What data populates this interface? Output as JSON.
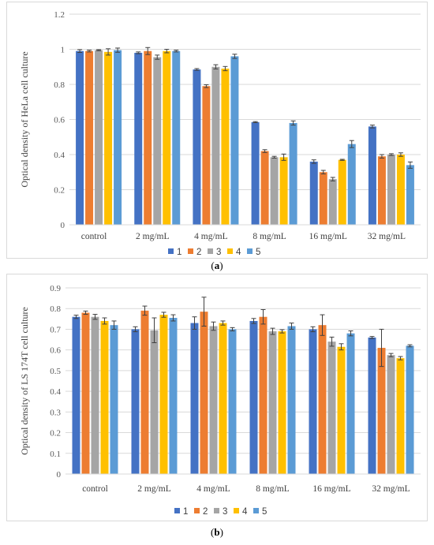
{
  "chart_data": [
    {
      "type": "bar",
      "caption_letter": "a",
      "ylabel": "Optical density of HeLa cell culture",
      "xlabel": "",
      "ylim": [
        0,
        1.2
      ],
      "yticks": [
        "0",
        "0.2",
        "0.4",
        "0.6",
        "0.8",
        "1",
        "1.2"
      ],
      "ytick_values": [
        0,
        0.2,
        0.4,
        0.6,
        0.8,
        1.0,
        1.2
      ],
      "categories": [
        "control",
        "2 mg/mL",
        "4 mg/mL",
        "8 mg/mL",
        "16 mg/mL",
        "32 mg/mL"
      ],
      "grid": true,
      "legend_position": "bottom",
      "series": [
        {
          "name": "1",
          "color": "#4472C4",
          "values": [
            0.99,
            0.98,
            0.885,
            0.585,
            0.36,
            0.56
          ],
          "errors": [
            0.008,
            0.005,
            0.005,
            0.003,
            0.01,
            0.008
          ]
        },
        {
          "name": "2",
          "color": "#ED7D31",
          "values": [
            0.99,
            0.99,
            0.79,
            0.42,
            0.3,
            0.39
          ],
          "errors": [
            0.005,
            0.02,
            0.008,
            0.008,
            0.01,
            0.01
          ]
        },
        {
          "name": "3",
          "color": "#A5A5A5",
          "values": [
            0.995,
            0.955,
            0.9,
            0.385,
            0.26,
            0.4
          ],
          "errors": [
            0.003,
            0.012,
            0.012,
            0.005,
            0.01,
            0.005
          ]
        },
        {
          "name": "4",
          "color": "#FFC000",
          "values": [
            0.985,
            0.99,
            0.89,
            0.385,
            0.37,
            0.4
          ],
          "errors": [
            0.018,
            0.01,
            0.012,
            0.018,
            0.003,
            0.01
          ]
        },
        {
          "name": "5",
          "color": "#5B9BD5",
          "values": [
            0.995,
            0.99,
            0.96,
            0.58,
            0.46,
            0.34
          ],
          "errors": [
            0.012,
            0.005,
            0.012,
            0.012,
            0.02,
            0.018
          ]
        }
      ]
    },
    {
      "type": "bar",
      "caption_letter": "b",
      "ylabel": "Optical density of LS 174T cell culture",
      "xlabel": "",
      "ylim": [
        0,
        0.9
      ],
      "yticks": [
        "0",
        "0.1",
        "0.2",
        "0.3",
        "0.4",
        "0.5",
        "0.6",
        "0.7",
        "0.8",
        "0.9"
      ],
      "ytick_values": [
        0,
        0.1,
        0.2,
        0.3,
        0.4,
        0.5,
        0.6,
        0.7,
        0.8,
        0.9
      ],
      "categories": [
        "control",
        "2 mg/mL",
        "4 mg/mL",
        "8 mg/mL",
        "16 mg/mL",
        "32 mg/mL"
      ],
      "grid": true,
      "legend_position": "bottom",
      "series": [
        {
          "name": "1",
          "color": "#4472C4",
          "values": [
            0.76,
            0.7,
            0.73,
            0.74,
            0.7,
            0.66
          ],
          "errors": [
            0.008,
            0.012,
            0.03,
            0.012,
            0.012,
            0.005
          ]
        },
        {
          "name": "2",
          "color": "#ED7D31",
          "values": [
            0.78,
            0.79,
            0.785,
            0.76,
            0.72,
            0.61
          ],
          "errors": [
            0.008,
            0.022,
            0.07,
            0.035,
            0.05,
            0.09
          ]
        },
        {
          "name": "3",
          "color": "#A5A5A5",
          "values": [
            0.76,
            0.695,
            0.715,
            0.69,
            0.64,
            0.575
          ],
          "errors": [
            0.012,
            0.06,
            0.02,
            0.015,
            0.022,
            0.008
          ]
        },
        {
          "name": "4",
          "color": "#FFC000",
          "values": [
            0.74,
            0.77,
            0.73,
            0.69,
            0.615,
            0.56
          ],
          "errors": [
            0.015,
            0.012,
            0.01,
            0.008,
            0.015,
            0.008
          ]
        },
        {
          "name": "5",
          "color": "#5B9BD5",
          "values": [
            0.72,
            0.755,
            0.7,
            0.715,
            0.68,
            0.62
          ],
          "errors": [
            0.02,
            0.015,
            0.008,
            0.015,
            0.012,
            0.005
          ]
        }
      ]
    }
  ]
}
